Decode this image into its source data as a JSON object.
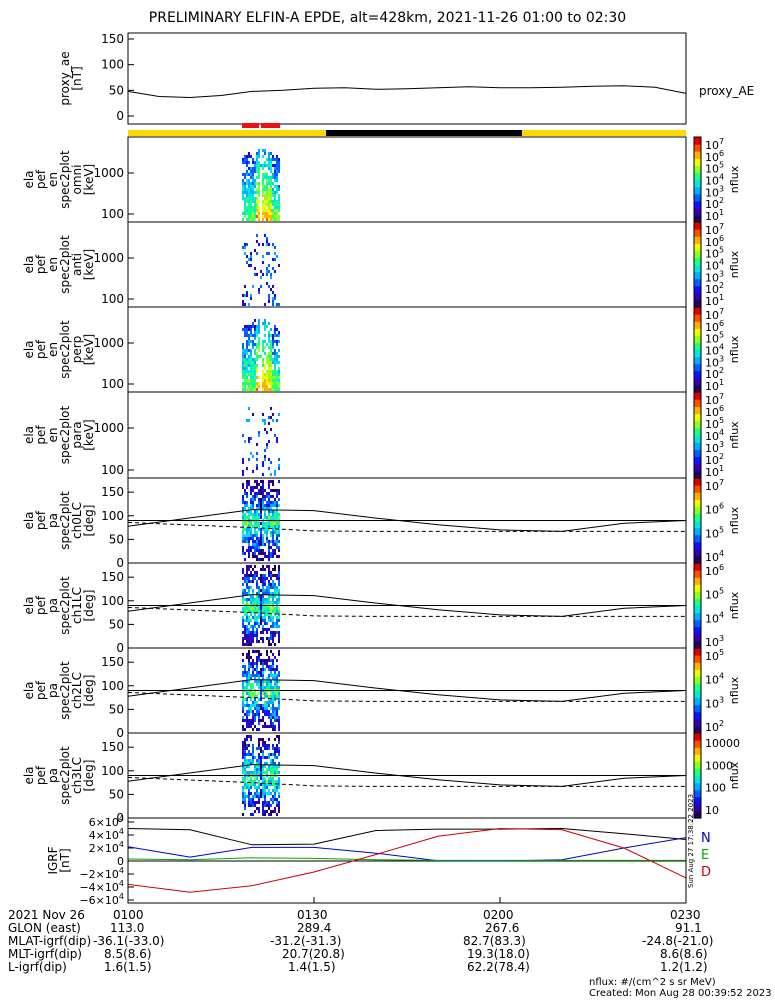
{
  "title": "PRELIMINARY ELFIN-A EPDE, alt=428km, 2021-11-26 01:00 to 02:30",
  "colors": {
    "mission_bar_yellow": "#ffd800",
    "mission_bar_black": "#000000",
    "science_zone_red": "#ee1010",
    "bx": "#000000",
    "by": "#0000cc",
    "bz": "#00aa00",
    "bd": "#cc0000"
  },
  "chart_data": [
    {
      "type": "line",
      "name": "proxy_ae",
      "ylabel": "proxy_ae [nT]",
      "ylim": [
        0,
        150
      ],
      "yticks": [
        "150",
        "100",
        "50",
        "0"
      ],
      "legend": "proxy_AE",
      "x_minutes": [
        0,
        5,
        10,
        15,
        20,
        25,
        30,
        35,
        40,
        45,
        50,
        55,
        60,
        65,
        70,
        75,
        80,
        85,
        90
      ],
      "values": [
        48,
        38,
        36,
        40,
        48,
        50,
        54,
        55,
        52,
        53,
        55,
        57,
        55,
        55,
        56,
        58,
        59,
        56,
        44
      ]
    },
    {
      "type": "heatmap",
      "ylabel": [
        "ela",
        "pef",
        "en",
        "spec2plot",
        "omni",
        "[keV]"
      ],
      "yticks": [
        "1000",
        "100"
      ],
      "zlabel": "nflux",
      "ztick_exponents": [
        "7",
        "6",
        "5",
        "4",
        "3",
        "2",
        "1"
      ]
    },
    {
      "type": "heatmap",
      "ylabel": [
        "ela",
        "pef",
        "en",
        "spec2plot",
        "anti",
        "[keV]"
      ],
      "yticks": [
        "1000",
        "100"
      ],
      "zlabel": "nflux",
      "ztick_exponents": [
        "7",
        "6",
        "5",
        "4",
        "3",
        "2",
        "1"
      ]
    },
    {
      "type": "heatmap",
      "ylabel": [
        "ela",
        "pef",
        "en",
        "spec2plot",
        "perp",
        "[keV]"
      ],
      "yticks": [
        "1000",
        "100"
      ],
      "zlabel": "nflux",
      "ztick_exponents": [
        "7",
        "6",
        "5",
        "4",
        "3",
        "2",
        "1"
      ]
    },
    {
      "type": "heatmap",
      "ylabel": [
        "ela",
        "pef",
        "en",
        "spec2plot",
        "para",
        "[keV]"
      ],
      "yticks": [
        "1000",
        "100"
      ],
      "zlabel": "nflux",
      "ztick_exponents": [
        "7",
        "6",
        "5",
        "4",
        "3",
        "2",
        "1"
      ]
    },
    {
      "type": "heatmap",
      "ylabel": [
        "ela",
        "pef",
        "pa",
        "spec2plot",
        "ch0LC",
        "[deg]"
      ],
      "yticks": [
        "150",
        "100",
        "50",
        "0"
      ],
      "zlabel": "nflux",
      "ztick_exponents": [
        "7",
        "6",
        "5",
        "4"
      ]
    },
    {
      "type": "heatmap",
      "ylabel": [
        "ela",
        "pef",
        "pa",
        "spec2plot",
        "ch1LC",
        "[deg]"
      ],
      "yticks": [
        "150",
        "100",
        "50",
        "0"
      ],
      "zlabel": "nflux",
      "ztick_exponents": [
        "6",
        "5",
        "4",
        "3"
      ]
    },
    {
      "type": "heatmap",
      "ylabel": [
        "ela",
        "pef",
        "pa",
        "spec2plot",
        "ch2LC",
        "[deg]"
      ],
      "yticks": [
        "150",
        "100",
        "50",
        "0"
      ],
      "zlabel": "nflux",
      "ztick_exponents": [
        "5",
        "4",
        "3",
        "2"
      ]
    },
    {
      "type": "heatmap",
      "ylabel": [
        "ela",
        "pef",
        "pa",
        "spec2plot",
        "ch3LC",
        "[deg]"
      ],
      "yticks": [
        "150",
        "100",
        "50",
        "0"
      ],
      "zlabel": "nflux",
      "zticks_plain": [
        "10000",
        "1000",
        "100",
        "10"
      ]
    },
    {
      "type": "line",
      "name": "IGRF",
      "ylabel": [
        "IGRF",
        "[nT]"
      ],
      "ylim": [
        -60000,
        60000
      ],
      "yticks": [
        {
          "mant": "6×10",
          "exp": "4"
        },
        {
          "mant": "4×10",
          "exp": "4"
        },
        {
          "mant": "2×10",
          "exp": "4"
        },
        {
          "mant": "0",
          "exp": ""
        },
        {
          "mant": "−2×10",
          "exp": "4"
        },
        {
          "mant": "−4×10",
          "exp": "4"
        },
        {
          "mant": "−6×10",
          "exp": "4"
        }
      ],
      "legend": [
        "N",
        "E",
        "D"
      ],
      "side_note": "Sun Aug 27 17:38:22 2023",
      "series": [
        {
          "name": "N",
          "x_minutes": [
            0,
            10,
            20,
            30,
            40,
            50,
            60,
            70,
            80,
            90
          ],
          "values": [
            50000,
            48000,
            25000,
            26000,
            47000,
            49000,
            49000,
            50000,
            42000,
            33000
          ]
        },
        {
          "name": "E",
          "x_minutes": [
            0,
            10,
            20,
            30,
            40,
            50,
            60,
            70,
            80,
            90
          ],
          "values": [
            22000,
            6000,
            21000,
            21000,
            12000,
            500,
            0,
            2000,
            20000,
            36000
          ]
        },
        {
          "name": "D",
          "x_minutes": [
            0,
            10,
            20,
            30,
            40,
            50,
            60,
            70,
            80,
            90
          ],
          "values": [
            3000,
            2000,
            5000,
            4000,
            2000,
            1000,
            1000,
            1000,
            1000,
            1000
          ]
        },
        {
          "name": "",
          "x_minutes": [
            0,
            10,
            20,
            30,
            40,
            50,
            60,
            70,
            80,
            90
          ],
          "values": [
            -36000,
            -48000,
            -38000,
            -17000,
            10000,
            38000,
            50000,
            48000,
            20000,
            -26000
          ]
        }
      ]
    }
  ],
  "mlat_lines": {
    "x_minutes": [
      0,
      20,
      30,
      40,
      50,
      60,
      70,
      80,
      90
    ],
    "solid_deg": [
      78,
      113,
      111,
      95,
      81,
      70,
      67,
      84,
      90
    ],
    "dashed_deg": [
      86,
      75,
      68,
      67,
      67,
      67,
      67,
      67,
      67
    ]
  },
  "time_axis": {
    "labels": [
      "2021 Nov 26",
      "0100",
      "0130",
      "0200",
      "0230"
    ],
    "rows": [
      {
        "label": "GLON (east)",
        "values": [
          "113.0",
          "289.4",
          "267.6",
          "91.1"
        ]
      },
      {
        "label": "MLAT-igrf(dip)",
        "values": [
          "-36.1(-33.0)",
          "-31.2(-31.3)",
          "82.7(83.3)",
          "-24.8(-21.0)"
        ]
      },
      {
        "label": "MLT-igrf(dip)",
        "values": [
          "8.5(8.6)",
          "20.7(20.8)",
          "19.3(18.0)",
          "8.6(8.6)"
        ]
      },
      {
        "label": "L-igrf(dip)",
        "values": [
          "1.6(1.5)",
          "1.4(1.5)",
          "62.2(78.4)",
          "1.2(1.2)"
        ]
      }
    ]
  },
  "footer": {
    "units": "nflux: #/(cm^2 s sr MeV)",
    "created": "Created: Mon Aug 28 00:39:52 2023"
  }
}
